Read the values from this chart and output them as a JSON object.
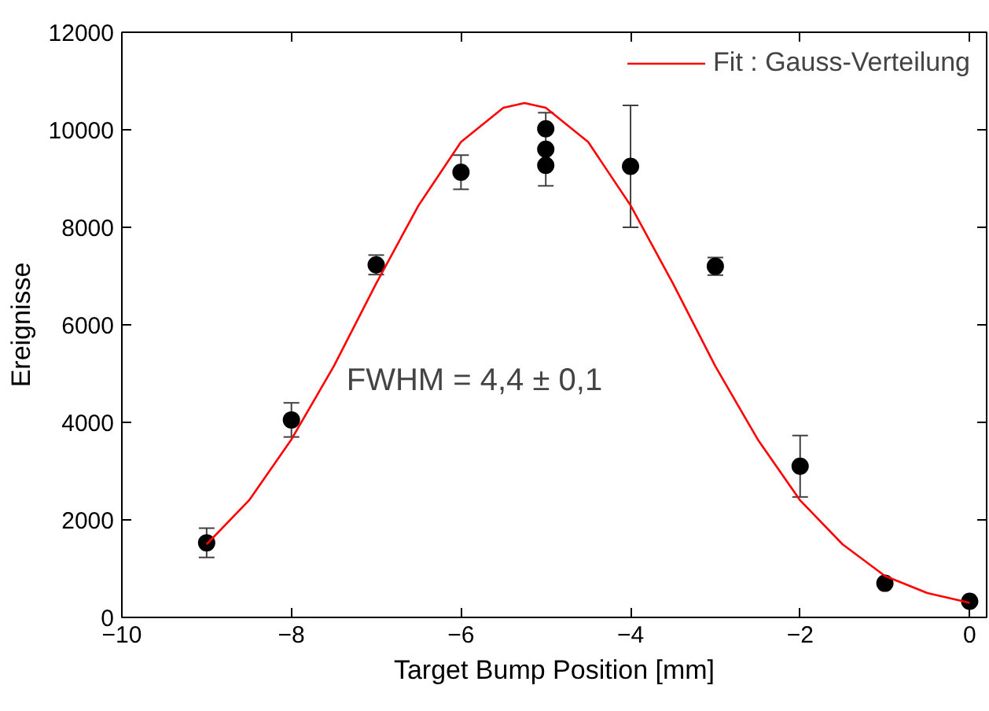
{
  "chart_data": {
    "type": "scatter",
    "xlabel": "Target Bump Position [mm]",
    "ylabel": "Ereignisse",
    "xlim": [
      -10,
      0.2
    ],
    "ylim": [
      0,
      12000
    ],
    "xticks": [
      -10,
      -8,
      -6,
      -4,
      -2,
      0
    ],
    "yticks": [
      0,
      2000,
      4000,
      6000,
      8000,
      10000,
      12000
    ],
    "grid": false,
    "legend": "top right",
    "annotations": [
      "FWHM = 4,4 ± 0,1"
    ],
    "series": [
      {
        "marker": "circle",
        "color": "#000000",
        "x": [
          -9,
          -8,
          -7,
          -6,
          -5,
          -5,
          -5,
          -4,
          -3,
          -2,
          -1,
          0
        ],
        "values": [
          1530,
          4050,
          7230,
          9130,
          10020,
          9600,
          9270,
          9250,
          7200,
          3100,
          700,
          330
        ],
        "errors": [
          300,
          350,
          200,
          350,
          null,
          750,
          null,
          1250,
          180,
          630,
          null,
          null
        ]
      },
      {
        "type": "line",
        "marker": "none",
        "name": "Fit : Gauss-Verteilung",
        "color": "#ff0000",
        "line_style": "solid",
        "x": [
          -9,
          -8.5,
          -8,
          -7.5,
          -7,
          -6.5,
          -6,
          -5.5,
          -5.25,
          -5,
          -4.5,
          -4,
          -3.5,
          -3,
          -2.5,
          -2,
          -1.5,
          -1,
          -0.5,
          0
        ],
        "values": [
          1500,
          2400,
          3650,
          5150,
          6850,
          8450,
          9750,
          10450,
          10550,
          10450,
          9750,
          8450,
          6850,
          5150,
          3650,
          2400,
          1500,
          850,
          500,
          300
        ]
      }
    ]
  }
}
